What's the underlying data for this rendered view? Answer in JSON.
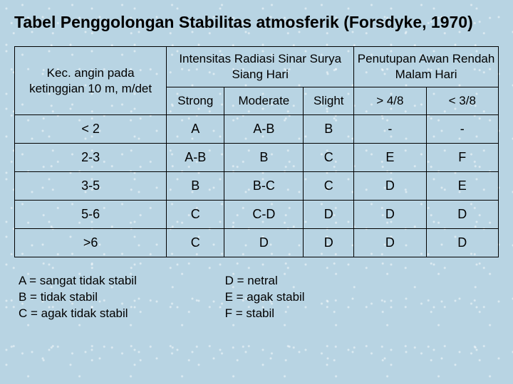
{
  "title": "Tabel Penggolongan Stabilitas atmosferik (Forsdyke, 1970)",
  "table": {
    "row_header": "Kec. angin pada ketinggian 10 m, m/det",
    "group1": "Intensitas Radiasi Sinar Surya Siang Hari",
    "group2": "Penutupan Awan Rendah Malam Hari",
    "sub": {
      "c1": "Strong",
      "c2": "Moderate",
      "c3": "Slight",
      "c4": "> 4/8",
      "c5": "< 3/8"
    },
    "rows": [
      {
        "h": "< 2",
        "c1": "A",
        "c2": "A-B",
        "c3": "B",
        "c4": "-",
        "c5": "-"
      },
      {
        "h": "2-3",
        "c1": "A-B",
        "c2": "B",
        "c3": "C",
        "c4": "E",
        "c5": "F"
      },
      {
        "h": "3-5",
        "c1": "B",
        "c2": "B-C",
        "c3": "C",
        "c4": "D",
        "c5": "E"
      },
      {
        "h": "5-6",
        "c1": "C",
        "c2": "C-D",
        "c3": "D",
        "c4": "D",
        "c5": "D"
      },
      {
        "h": ">6",
        "c1": "C",
        "c2": "D",
        "c3": "D",
        "c4": "D",
        "c5": "D"
      }
    ]
  },
  "legend": {
    "left": {
      "a": "A = sangat tidak stabil",
      "b": "B = tidak stabil",
      "c": "C = agak tidak stabil"
    },
    "right": {
      "d": "D = netral",
      "e": "E = agak stabil",
      "f": "F = stabil"
    }
  }
}
